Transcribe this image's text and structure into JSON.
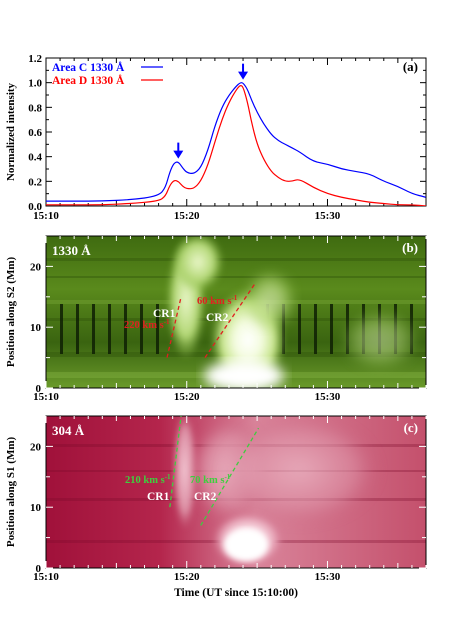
{
  "figure": {
    "x_tick_labels": [
      "15:10",
      "15:20",
      "15:30"
    ],
    "x_axis_label": "Time (UT since 15:10:00)"
  },
  "chart_data": [
    {
      "type": "line",
      "panel_label": "(a)",
      "ylabel": "Normalized intensity",
      "ylim": [
        0.0,
        1.2
      ],
      "y_ticks": [
        "0.0",
        "0.2",
        "0.4",
        "0.6",
        "0.8",
        "1.0",
        "1.2"
      ],
      "xlim_minutes": [
        0,
        27
      ],
      "x_unit": "minutes since 15:10:00",
      "series": [
        {
          "name": "Area C 1330 Å",
          "color": "#0000ff",
          "x": [
            0,
            2,
            4,
            6,
            8,
            8.5,
            8.8,
            9.1,
            9.4,
            9.7,
            10.0,
            10.5,
            11.0,
            11.5,
            12.0,
            12.5,
            13.0,
            13.5,
            13.8,
            14.0,
            14.3,
            14.6,
            15.0,
            15.5,
            16.0,
            16.5,
            17.0,
            17.5,
            18.0,
            19.0,
            20.0,
            21.0,
            22.0,
            23.0,
            24.0,
            25.0,
            26.0,
            27.0
          ],
          "values": [
            0.04,
            0.04,
            0.04,
            0.05,
            0.08,
            0.15,
            0.28,
            0.35,
            0.36,
            0.31,
            0.27,
            0.26,
            0.31,
            0.45,
            0.65,
            0.8,
            0.9,
            0.97,
            1.0,
            1.0,
            0.95,
            0.86,
            0.76,
            0.66,
            0.58,
            0.53,
            0.5,
            0.47,
            0.44,
            0.36,
            0.34,
            0.3,
            0.28,
            0.26,
            0.2,
            0.16,
            0.1,
            0.07
          ]
        },
        {
          "name": "Area D 1330 Å",
          "color": "#ff0000",
          "x": [
            0,
            2,
            4,
            6,
            8,
            8.5,
            8.8,
            9.1,
            9.4,
            9.7,
            10.0,
            10.5,
            11.0,
            11.5,
            12.0,
            12.5,
            13.0,
            13.5,
            13.8,
            14.0,
            14.3,
            14.6,
            15.0,
            15.5,
            16.0,
            16.5,
            17.0,
            17.5,
            18.0,
            19.0,
            20.0,
            21.0,
            22.0,
            23.0,
            24.0,
            25.0,
            26.0,
            27.0
          ],
          "values": [
            0.01,
            0.01,
            0.01,
            0.02,
            0.04,
            0.08,
            0.17,
            0.21,
            0.2,
            0.16,
            0.14,
            0.14,
            0.2,
            0.33,
            0.52,
            0.7,
            0.84,
            0.94,
            0.98,
            0.97,
            0.85,
            0.68,
            0.5,
            0.37,
            0.28,
            0.23,
            0.2,
            0.2,
            0.22,
            0.15,
            0.1,
            0.07,
            0.05,
            0.03,
            0.02,
            0.01,
            0.01,
            0.0
          ]
        }
      ],
      "annotations": [
        {
          "kind": "arrow",
          "color": "#0000ff",
          "x": 9.4,
          "y": 0.36
        },
        {
          "kind": "arrow",
          "color": "#0000ff",
          "x": 14.0,
          "y": 1.0
        }
      ]
    },
    {
      "type": "heatmap",
      "panel_label": "(b)",
      "channel_label": "1330 Å",
      "ylabel": "Position along S2 (Mm)",
      "ylim": [
        0,
        25
      ],
      "y_ticks": [
        "0",
        "10",
        "20"
      ],
      "colormap": "green",
      "ribbons": [
        {
          "name": "CR1",
          "speed_label": "220 km s",
          "speed_unit_superscript": "-1",
          "color": "#e02020",
          "line": [
            [
              8.6,
              5
            ],
            [
              9.6,
              15
            ]
          ]
        },
        {
          "name": "CR2",
          "speed_label": "60 km s",
          "speed_unit_superscript": "-1",
          "color": "#e02020",
          "line": [
            [
              11.3,
              5
            ],
            [
              14.8,
              17
            ]
          ]
        }
      ]
    },
    {
      "type": "heatmap",
      "panel_label": "(c)",
      "channel_label": "304 Å",
      "ylabel": "Position along S1 (Mm)",
      "ylim": [
        0,
        25
      ],
      "y_ticks": [
        "0",
        "10",
        "20"
      ],
      "colormap": "red",
      "ribbons": [
        {
          "name": "CR1",
          "speed_label": "210 km s",
          "speed_unit_superscript": "-1",
          "color": "#40cc40",
          "line": [
            [
              8.8,
              10
            ],
            [
              9.6,
              25
            ]
          ]
        },
        {
          "name": "CR2",
          "speed_label": "70 km s",
          "speed_unit_superscript": "-1",
          "color": "#40cc40",
          "line": [
            [
              11.0,
              7
            ],
            [
              15.1,
              23
            ]
          ]
        }
      ]
    }
  ]
}
